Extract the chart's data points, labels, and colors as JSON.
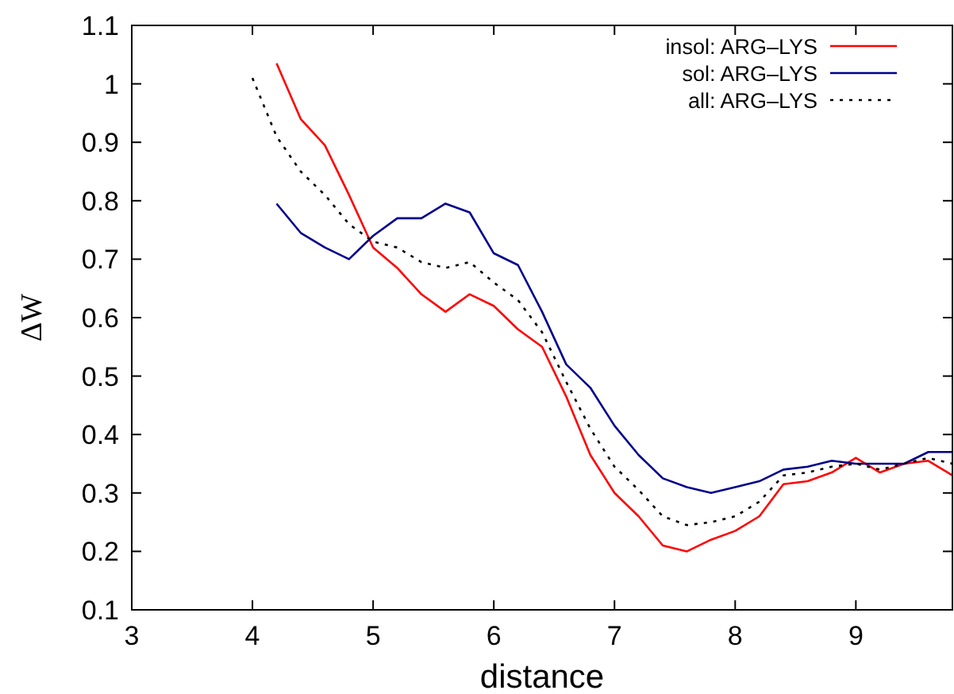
{
  "chart_data": {
    "type": "line",
    "xlabel": "distance",
    "ylabel": "ΔW",
    "xlim": [
      3,
      9.8
    ],
    "ylim": [
      0.1,
      1.1
    ],
    "xticks": [
      3,
      4,
      5,
      6,
      7,
      8,
      9
    ],
    "yticks": [
      0.1,
      0.2,
      0.3,
      0.4,
      0.5,
      0.6,
      0.7,
      0.8,
      0.9,
      1,
      1.1
    ],
    "grid": false,
    "legend": "top right",
    "series": [
      {
        "name": "insol: ARG–LYS",
        "color": "#ff0000",
        "line_style": "solid",
        "x": [
          4.2,
          4.4,
          4.6,
          4.8,
          5.0,
          5.2,
          5.4,
          5.6,
          5.8,
          6.0,
          6.2,
          6.4,
          6.6,
          6.8,
          7.0,
          7.2,
          7.4,
          7.6,
          7.8,
          8.0,
          8.2,
          8.4,
          8.6,
          8.8,
          9.0,
          9.2,
          9.4,
          9.6,
          9.8
        ],
        "values": [
          1.035,
          0.94,
          0.895,
          0.81,
          0.72,
          0.685,
          0.64,
          0.61,
          0.64,
          0.62,
          0.58,
          0.55,
          0.465,
          0.365,
          0.3,
          0.26,
          0.21,
          0.2,
          0.22,
          0.235,
          0.26,
          0.315,
          0.32,
          0.335,
          0.36,
          0.335,
          0.35,
          0.355,
          0.33
        ]
      },
      {
        "name": "sol: ARG–LYS",
        "color": "#00008b",
        "line_style": "solid",
        "x": [
          4.2,
          4.4,
          4.6,
          4.8,
          5.0,
          5.2,
          5.4,
          5.6,
          5.8,
          6.0,
          6.2,
          6.4,
          6.6,
          6.8,
          7.0,
          7.2,
          7.4,
          7.6,
          7.8,
          8.0,
          8.2,
          8.4,
          8.6,
          8.8,
          9.0,
          9.2,
          9.4,
          9.6,
          9.8
        ],
        "values": [
          0.795,
          0.745,
          0.72,
          0.7,
          0.74,
          0.77,
          0.77,
          0.795,
          0.78,
          0.71,
          0.69,
          0.61,
          0.52,
          0.48,
          0.415,
          0.365,
          0.325,
          0.31,
          0.3,
          0.31,
          0.32,
          0.34,
          0.345,
          0.355,
          0.35,
          0.35,
          0.35,
          0.37,
          0.37
        ]
      },
      {
        "name": "all: ARG–LYS",
        "color": "#000000",
        "line_style": "dotted",
        "x": [
          4.0,
          4.2,
          4.4,
          4.6,
          4.8,
          5.0,
          5.2,
          5.4,
          5.6,
          5.8,
          6.0,
          6.2,
          6.4,
          6.6,
          6.8,
          7.0,
          7.2,
          7.4,
          7.6,
          7.8,
          8.0,
          8.2,
          8.4,
          8.6,
          8.8,
          9.0,
          9.2,
          9.4,
          9.6,
          9.8
        ],
        "values": [
          1.01,
          0.91,
          0.85,
          0.81,
          0.76,
          0.73,
          0.72,
          0.695,
          0.685,
          0.695,
          0.66,
          0.63,
          0.575,
          0.49,
          0.41,
          0.345,
          0.305,
          0.26,
          0.245,
          0.25,
          0.26,
          0.285,
          0.33,
          0.335,
          0.345,
          0.35,
          0.34,
          0.35,
          0.36,
          0.35
        ]
      }
    ]
  }
}
